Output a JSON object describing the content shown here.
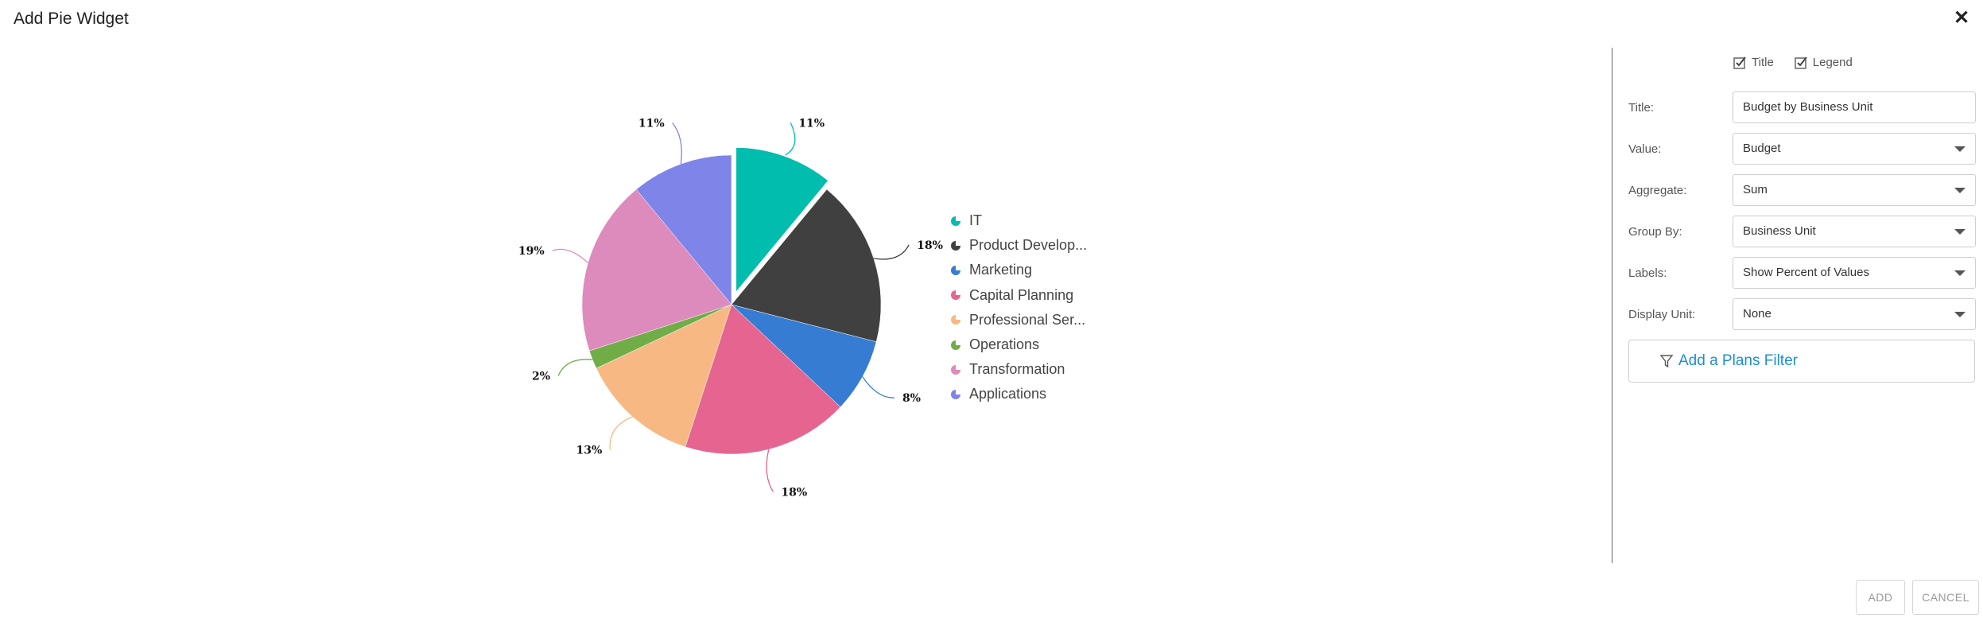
{
  "dialog": {
    "title": "Add Pie Widget"
  },
  "icons": {
    "close": "close-icon",
    "checkbox": "checkbox-checked-icon",
    "caret": "chevron-down-icon",
    "filter": "filter-icon"
  },
  "chart_data": {
    "type": "pie",
    "title": "",
    "slices": [
      {
        "label": "IT",
        "value": 11,
        "label_text": "11%",
        "color": "#00bdae",
        "exploded": true
      },
      {
        "label": "Product Develop...",
        "value": 18,
        "label_text": "18%",
        "color": "#404041"
      },
      {
        "label": "Marketing",
        "value": 8,
        "label_text": "8%",
        "color": "#357cd2"
      },
      {
        "label": "Capital Planning",
        "value": 18,
        "label_text": "18%",
        "color": "#e56590"
      },
      {
        "label": "Professional Ser...",
        "value": 13,
        "label_text": "13%",
        "color": "#f8b883"
      },
      {
        "label": "Operations",
        "value": 2,
        "label_text": "2%",
        "color": "#70ad47"
      },
      {
        "label": "Transformation",
        "value": 19,
        "label_text": "19%",
        "color": "#dd8abd"
      },
      {
        "label": "Applications",
        "value": 11,
        "label_text": "11%",
        "color": "#7f84e8"
      }
    ],
    "legend_position": "right"
  },
  "panel": {
    "toggles": [
      {
        "label": "Title",
        "checked": true
      },
      {
        "label": "Legend",
        "checked": true
      }
    ],
    "fields": [
      {
        "label": "Title:",
        "value": "Budget by Business Unit",
        "type": "text"
      },
      {
        "label": "Value:",
        "value": "Budget",
        "type": "select"
      },
      {
        "label": "Aggregate:",
        "value": "Sum",
        "type": "select"
      },
      {
        "label": "Group By:",
        "value": "Business Unit",
        "type": "select"
      },
      {
        "label": "Labels:",
        "value": "Show Percent of Values",
        "type": "select"
      },
      {
        "label": "Display Unit:",
        "value": "None",
        "type": "select"
      }
    ],
    "filter_button": "Add a Plans Filter"
  },
  "footer": {
    "add_label": "ADD",
    "cancel_label": "CANCEL"
  },
  "colors": {
    "accent": "#1d8fd6"
  }
}
